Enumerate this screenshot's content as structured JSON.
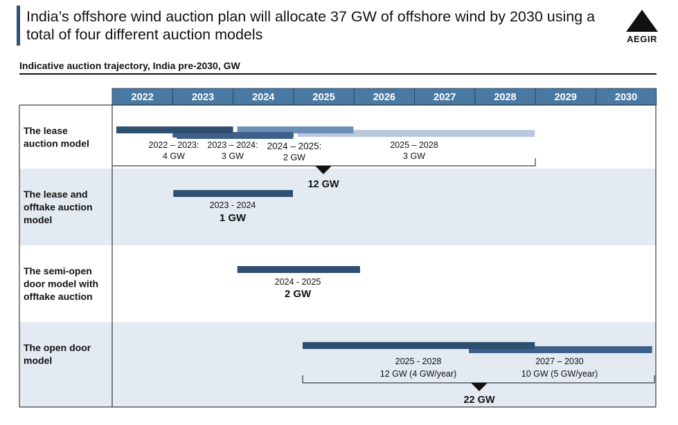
{
  "header": {
    "title": "India’s offshore wind auction plan will allocate 37 GW of offshore wind by 2030 using a total of four different auction models",
    "logo_text": "AEGIR",
    "subtitle": "Indicative auction trajectory, India pre-2030, GW"
  },
  "chart_data": {
    "type": "gantt",
    "years": [
      "2022",
      "2023",
      "2024",
      "2025",
      "2026",
      "2027",
      "2028",
      "2029",
      "2030"
    ],
    "rows": [
      {
        "label": "The lease auction model",
        "bars": [
          {
            "start": 2022,
            "end": 2023.99,
            "color": "#2f4f70",
            "label_period": "2022 – 2023:",
            "label_value": "4 GW"
          },
          {
            "start": 2023,
            "end": 2024.99,
            "color": "#3d5f8a",
            "label_period": "2023 – 2024:",
            "label_value": "3 GW"
          },
          {
            "start": 2024,
            "end": 2025.99,
            "color": "#6d8fb5",
            "label_period": "2024 – 2025:",
            "label_value": "2 GW"
          },
          {
            "start": 2025,
            "end": 2028.99,
            "color": "#b9c8dc",
            "label_period": "2025 – 2028",
            "label_value": "3 GW"
          }
        ],
        "total": "12 GW"
      },
      {
        "label": "The lease and offtake auction model",
        "bars": [
          {
            "start": 2023,
            "end": 2024.99,
            "color": "#2f4f70",
            "label_period": "2023 - 2024",
            "label_value": "1 GW"
          }
        ]
      },
      {
        "label": "The semi-open door model with offtake auction",
        "bars": [
          {
            "start": 2024.07,
            "end": 2026.1,
            "color": "#2f4f70",
            "label_period": "2024 - 2025",
            "label_value": "2 GW"
          }
        ]
      },
      {
        "label": "The open door model",
        "bars": [
          {
            "start": 2025.15,
            "end": 2028.99,
            "color": "#2f4f70",
            "label_period": "2025 - 2028",
            "label_value": "12 GW (4 GW/year)"
          },
          {
            "start": 2027.9,
            "end": 2030.93,
            "color": "#3d5f8a",
            "label_period": "2027 – 2030",
            "label_value": "10 GW (5 GW/year)"
          }
        ],
        "total": "22 GW"
      }
    ],
    "colors": {
      "header": "#4a7aa3",
      "header_text": "#ffffff",
      "band": "#e3eaf1"
    }
  }
}
